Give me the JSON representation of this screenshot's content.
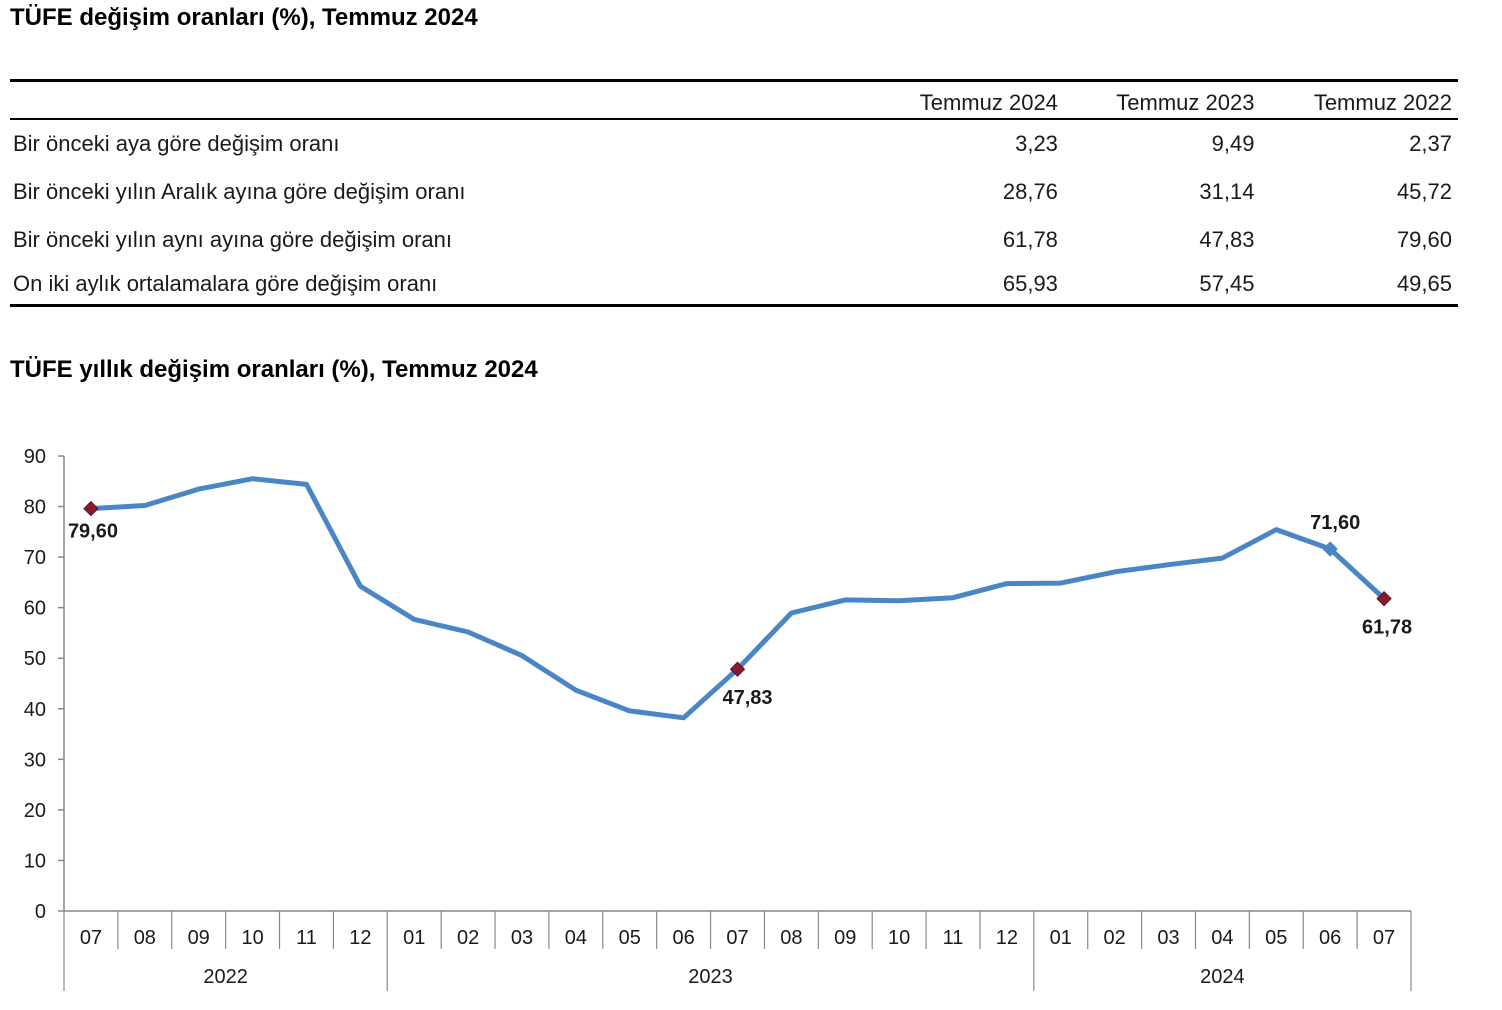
{
  "table_title": "TÜFE değişim oranları (%), Temmuz 2024",
  "chart_title": "TÜFE yıllık değişim oranları (%), Temmuz 2024",
  "table": {
    "columns": [
      "Temmuz 2024",
      "Temmuz 2023",
      "Temmuz 2022"
    ],
    "rows": [
      {
        "label": "Bir önceki aya göre değişim oranı",
        "values": [
          "3,23",
          "9,49",
          "2,37"
        ]
      },
      {
        "label": "Bir önceki yılın Aralık ayına göre değişim oranı",
        "values": [
          "28,76",
          "31,14",
          "45,72"
        ]
      },
      {
        "label": "Bir önceki yılın aynı ayına göre değişim oranı",
        "values": [
          "61,78",
          "47,83",
          "79,60"
        ]
      },
      {
        "label": "On iki aylık ortalamalara göre değişim oranı",
        "values": [
          "65,93",
          "57,45",
          "49,65"
        ]
      }
    ]
  },
  "chart_data": {
    "type": "line",
    "title": "TÜFE yıllık değişim oranları (%), Temmuz 2024",
    "xlabel": "",
    "ylabel": "",
    "ylim": [
      0,
      90
    ],
    "yticks": [
      0,
      10,
      20,
      30,
      40,
      50,
      60,
      70,
      80,
      90
    ],
    "grid": false,
    "categories": [
      "07",
      "08",
      "09",
      "10",
      "11",
      "12",
      "01",
      "02",
      "03",
      "04",
      "05",
      "06",
      "07",
      "08",
      "09",
      "10",
      "11",
      "12",
      "01",
      "02",
      "03",
      "04",
      "05",
      "06",
      "07"
    ],
    "year_groups": [
      {
        "label": "2022",
        "count": 6
      },
      {
        "label": "2023",
        "count": 12
      },
      {
        "label": "2024",
        "count": 7
      }
    ],
    "series": [
      {
        "name": "TÜFE yıllık değişim",
        "color": "#4a86c5",
        "values": [
          79.6,
          80.21,
          83.45,
          85.51,
          84.39,
          64.27,
          57.68,
          55.18,
          50.51,
          43.68,
          39.59,
          38.21,
          47.83,
          58.94,
          61.53,
          61.36,
          61.98,
          64.77,
          64.86,
          67.07,
          68.5,
          69.8,
          75.45,
          71.6,
          61.78
        ]
      }
    ],
    "annotations": [
      {
        "index": 0,
        "label": "79,60",
        "marker": "#8b1a2b",
        "pos": "below"
      },
      {
        "index": 12,
        "label": "47,83",
        "marker": "#8b1a2b",
        "pos": "below"
      },
      {
        "index": 23,
        "label": "71,60",
        "marker": "#4a86c5",
        "pos": "above"
      },
      {
        "index": 24,
        "label": "61,78",
        "marker": "#8b1a2b",
        "pos": "below"
      }
    ]
  }
}
